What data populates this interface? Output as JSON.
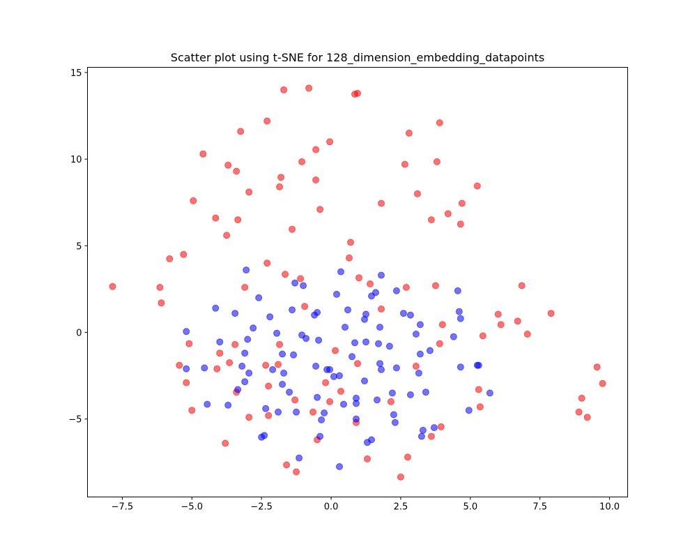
{
  "chart_data": {
    "type": "scatter",
    "title": "Scatter plot using t-SNE for 128_dimension_embedding_datapoints",
    "xlabel": "",
    "ylabel": "",
    "xlim": [
      -8.75,
      10.65
    ],
    "ylim": [
      -9.5,
      15.3
    ],
    "xticks": [
      -7.5,
      -5.0,
      -2.5,
      0.0,
      2.5,
      5.0,
      7.5,
      10.0
    ],
    "xtick_labels": [
      "−7.5",
      "−5.0",
      "−2.5",
      "0.0",
      "2.5",
      "5.0",
      "7.5",
      "10.0"
    ],
    "yticks": [
      -5,
      0,
      5,
      10,
      15
    ],
    "ytick_labels": [
      "−5",
      "0",
      "5",
      "10",
      "15"
    ],
    "grid": false,
    "legend": "none",
    "series": [
      {
        "color": "#ff0000",
        "alpha": 0.55,
        "points": [
          [
            -7.85,
            2.65
          ],
          [
            -6.15,
            2.6
          ],
          [
            -6.1,
            1.7
          ],
          [
            -5.8,
            4.25
          ],
          [
            -5.3,
            4.5
          ],
          [
            -5.45,
            -1.9
          ],
          [
            -5.2,
            -2.9
          ],
          [
            -5.1,
            -0.65
          ],
          [
            -5.0,
            -4.5
          ],
          [
            -4.95,
            7.6
          ],
          [
            -4.6,
            10.3
          ],
          [
            -4.15,
            6.6
          ],
          [
            -4.1,
            -2.1
          ],
          [
            -4.0,
            -1.2
          ],
          [
            -3.8,
            -6.4
          ],
          [
            -3.75,
            5.6
          ],
          [
            -3.7,
            9.65
          ],
          [
            -3.65,
            -1.75
          ],
          [
            -3.4,
            9.3
          ],
          [
            -3.45,
            -0.7
          ],
          [
            -3.4,
            -3.45
          ],
          [
            -3.35,
            6.5
          ],
          [
            -3.25,
            11.6
          ],
          [
            -3.1,
            2.6
          ],
          [
            -2.95,
            8.1
          ],
          [
            -2.95,
            -4.9
          ],
          [
            -2.3,
            12.2
          ],
          [
            -2.3,
            4.0
          ],
          [
            -2.35,
            -1.9
          ],
          [
            -2.25,
            -3.1
          ],
          [
            -2.25,
            -4.8
          ],
          [
            -1.9,
            -1.85
          ],
          [
            -1.85,
            8.4
          ],
          [
            -1.85,
            -0.7
          ],
          [
            -1.8,
            8.95
          ],
          [
            -1.7,
            14.0
          ],
          [
            -1.65,
            3.35
          ],
          [
            -1.6,
            -7.65
          ],
          [
            -1.4,
            5.95
          ],
          [
            -1.3,
            -3.9
          ],
          [
            -1.25,
            -8.05
          ],
          [
            -1.1,
            3.1
          ],
          [
            -1.05,
            9.85
          ],
          [
            -0.95,
            1.5
          ],
          [
            -0.8,
            14.1
          ],
          [
            -0.65,
            -4.6
          ],
          [
            -0.55,
            8.8
          ],
          [
            -0.55,
            10.55
          ],
          [
            -0.5,
            -6.2
          ],
          [
            -0.4,
            7.1
          ],
          [
            -0.2,
            -2.9
          ],
          [
            -0.05,
            11.0
          ],
          [
            -0.05,
            -4.0
          ],
          [
            0.15,
            -1.05
          ],
          [
            0.35,
            -3.4
          ],
          [
            0.65,
            4.3
          ],
          [
            0.7,
            5.2
          ],
          [
            0.85,
            13.75
          ],
          [
            0.95,
            13.8
          ],
          [
            0.9,
            -5.2
          ],
          [
            0.95,
            -1.8
          ],
          [
            1.0,
            3.15
          ],
          [
            1.3,
            -7.3
          ],
          [
            1.4,
            2.8
          ],
          [
            1.8,
            1.35
          ],
          [
            1.8,
            7.45
          ],
          [
            2.15,
            -4.0
          ],
          [
            2.5,
            -8.35
          ],
          [
            2.65,
            9.7
          ],
          [
            2.7,
            2.6
          ],
          [
            2.75,
            -7.2
          ],
          [
            2.8,
            11.5
          ],
          [
            3.05,
            -1.95
          ],
          [
            3.1,
            8.0
          ],
          [
            3.6,
            6.5
          ],
          [
            3.6,
            -6.0
          ],
          [
            3.75,
            2.7
          ],
          [
            3.8,
            9.85
          ],
          [
            3.9,
            -0.65
          ],
          [
            3.9,
            12.1
          ],
          [
            3.95,
            -5.45
          ],
          [
            4.0,
            0.45
          ],
          [
            4.2,
            6.85
          ],
          [
            4.65,
            6.25
          ],
          [
            4.7,
            7.45
          ],
          [
            5.25,
            8.45
          ],
          [
            5.3,
            -3.3
          ],
          [
            5.35,
            -4.3
          ],
          [
            5.45,
            -0.2
          ],
          [
            6.0,
            1.05
          ],
          [
            6.1,
            0.45
          ],
          [
            6.7,
            0.65
          ],
          [
            6.85,
            2.7
          ],
          [
            7.05,
            -0.1
          ],
          [
            7.9,
            1.1
          ],
          [
            8.9,
            -4.6
          ],
          [
            9.0,
            -3.8
          ],
          [
            9.2,
            -4.9
          ],
          [
            9.55,
            -2.0
          ],
          [
            9.75,
            -2.95
          ]
        ]
      },
      {
        "color": "#0000ff",
        "alpha": 0.55,
        "points": [
          [
            -5.2,
            0.05
          ],
          [
            -5.2,
            -2.1
          ],
          [
            -4.55,
            -2.05
          ],
          [
            -4.45,
            -4.15
          ],
          [
            -4.15,
            1.4
          ],
          [
            -4.0,
            -0.55
          ],
          [
            -3.7,
            -4.2
          ],
          [
            -3.45,
            1.1
          ],
          [
            -3.35,
            -3.3
          ],
          [
            -3.2,
            -1.95
          ],
          [
            -3.1,
            -1.2
          ],
          [
            -3.1,
            -2.85
          ],
          [
            -3.05,
            3.6
          ],
          [
            -3.0,
            -0.4
          ],
          [
            -2.95,
            -2.35
          ],
          [
            -2.8,
            0.25
          ],
          [
            -2.6,
            2.0
          ],
          [
            -2.5,
            -6.05
          ],
          [
            -2.4,
            -5.95
          ],
          [
            -2.35,
            -4.4
          ],
          [
            -2.2,
            0.9
          ],
          [
            -2.1,
            -2.15
          ],
          [
            -1.95,
            -0.05
          ],
          [
            -1.9,
            -4.6
          ],
          [
            -1.75,
            -1.25
          ],
          [
            -1.75,
            -3.0
          ],
          [
            -1.7,
            -2.35
          ],
          [
            -1.5,
            -3.45
          ],
          [
            -1.4,
            1.3
          ],
          [
            -1.35,
            -1.3
          ],
          [
            -1.3,
            2.85
          ],
          [
            -1.25,
            -4.6
          ],
          [
            -1.15,
            -7.25
          ],
          [
            -1.05,
            -0.15
          ],
          [
            -1.0,
            2.7
          ],
          [
            -0.9,
            -0.35
          ],
          [
            -0.6,
            1.0
          ],
          [
            -0.55,
            -1.95
          ],
          [
            -0.5,
            1.15
          ],
          [
            -0.5,
            -3.75
          ],
          [
            -0.45,
            -0.45
          ],
          [
            -0.4,
            -6.0
          ],
          [
            -0.35,
            -5.05
          ],
          [
            -0.25,
            -4.65
          ],
          [
            -0.15,
            -2.15
          ],
          [
            -0.05,
            -2.15
          ],
          [
            0.1,
            -2.55
          ],
          [
            0.2,
            2.2
          ],
          [
            0.3,
            -2.5
          ],
          [
            0.3,
            -7.75
          ],
          [
            0.35,
            3.5
          ],
          [
            0.45,
            -4.15
          ],
          [
            0.5,
            0.3
          ],
          [
            0.6,
            1.3
          ],
          [
            0.75,
            -1.4
          ],
          [
            0.85,
            -0.6
          ],
          [
            0.9,
            -4.1
          ],
          [
            0.9,
            -3.8
          ],
          [
            0.9,
            -5.0
          ],
          [
            1.2,
            0.75
          ],
          [
            1.2,
            -2.8
          ],
          [
            1.25,
            1.05
          ],
          [
            1.25,
            -0.55
          ],
          [
            1.3,
            -6.35
          ],
          [
            1.45,
            -6.2
          ],
          [
            1.45,
            2.1
          ],
          [
            1.6,
            2.3
          ],
          [
            1.65,
            -3.9
          ],
          [
            1.7,
            -0.65
          ],
          [
            1.75,
            -1.8
          ],
          [
            1.75,
            0.3
          ],
          [
            1.8,
            3.3
          ],
          [
            1.8,
            -2.15
          ],
          [
            2.1,
            -0.8
          ],
          [
            2.2,
            -3.5
          ],
          [
            2.25,
            -4.75
          ],
          [
            2.3,
            -5.2
          ],
          [
            2.35,
            2.4
          ],
          [
            2.35,
            -2.05
          ],
          [
            2.6,
            1.1
          ],
          [
            2.85,
            1.0
          ],
          [
            2.85,
            -3.6
          ],
          [
            3.05,
            -0.1
          ],
          [
            3.15,
            -2.35
          ],
          [
            3.2,
            0.45
          ],
          [
            3.25,
            -6.0
          ],
          [
            3.3,
            -5.65
          ],
          [
            3.4,
            -3.45
          ],
          [
            3.55,
            -1.05
          ],
          [
            3.7,
            -5.5
          ],
          [
            4.4,
            -0.25
          ],
          [
            4.55,
            2.4
          ],
          [
            4.6,
            1.2
          ],
          [
            4.65,
            0.8
          ],
          [
            4.65,
            -2.0
          ],
          [
            4.95,
            -4.5
          ],
          [
            5.3,
            -1.9
          ],
          [
            5.7,
            -3.5
          ],
          [
            5.25,
            -1.9
          ],
          [
            3.2,
            -1.25
          ]
        ]
      }
    ]
  }
}
